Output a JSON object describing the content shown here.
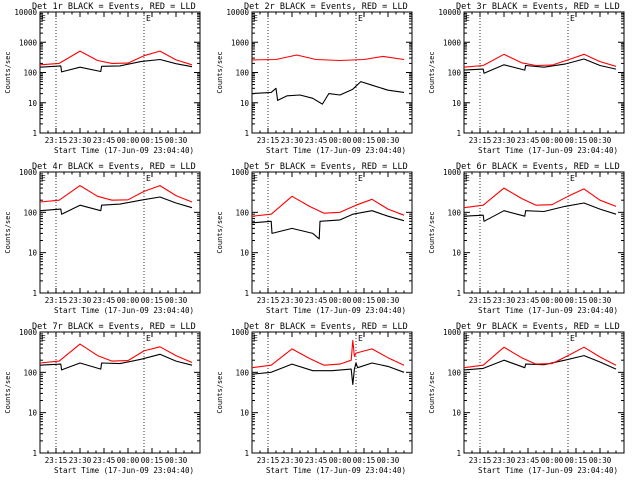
{
  "colors": {
    "events": "#000000",
    "lld": "#ff0000",
    "axes": "#000000",
    "background": "#ffffff"
  },
  "xlabel": "Start Time (17-Jun-09 23:04:40)",
  "ylabel": "Counts/sec",
  "corner_mark": "E",
  "xticks": [
    "23:15",
    "23:30",
    "23:45",
    "00:00",
    "00:15",
    "00:30"
  ],
  "yticks": [
    "1",
    "10",
    "100",
    "1000",
    "10000"
  ],
  "chart_data": [
    {
      "type": "line",
      "title": "Det 1r BLACK = Events, RED = LLD",
      "x_unit": "minutes after 23:04:40",
      "ylim": [
        1,
        10000
      ],
      "y_scale": "log",
      "grid": false,
      "series": [
        {
          "name": "Events",
          "x": [
            0,
            13,
            13.5,
            25,
            38,
            38.5,
            50,
            63,
            75,
            85,
            95
          ],
          "y": [
            150,
            165,
            105,
            150,
            108,
            160,
            165,
            230,
            270,
            195,
            155
          ]
        },
        {
          "name": "LLD",
          "x": [
            0,
            12,
            25,
            36,
            45,
            55,
            65,
            75,
            85,
            95
          ],
          "y": [
            180,
            200,
            510,
            250,
            200,
            205,
            360,
            510,
            260,
            180
          ]
        }
      ]
    },
    {
      "type": "line",
      "title": "Det 2r BLACK = Events, RED = LLD",
      "x_unit": "minutes after 23:04:40",
      "ylim": [
        1,
        10000
      ],
      "y_scale": "log",
      "grid": false,
      "series": [
        {
          "name": "Events",
          "x": [
            0,
            12,
            15,
            16,
            22,
            30,
            38,
            44,
            48,
            55,
            63,
            68,
            75,
            85,
            95
          ],
          "y": [
            20,
            22,
            30,
            12,
            17,
            18,
            14,
            9,
            20,
            18,
            28,
            50,
            38,
            26,
            22
          ]
        },
        {
          "name": "LLD",
          "x": [
            0,
            15,
            28,
            40,
            55,
            70,
            82,
            95
          ],
          "y": [
            260,
            270,
            380,
            270,
            250,
            270,
            340,
            270
          ]
        }
      ]
    },
    {
      "type": "line",
      "title": "Det 3r BLACK = Events, RED = LLD",
      "x_unit": "minutes after 23:04:40",
      "ylim": [
        1,
        10000
      ],
      "y_scale": "log",
      "grid": false,
      "series": [
        {
          "name": "Events",
          "x": [
            0,
            12,
            12.5,
            25,
            38,
            38.5,
            50,
            63,
            75,
            85,
            95
          ],
          "y": [
            120,
            130,
            95,
            180,
            120,
            170,
            150,
            190,
            280,
            170,
            130
          ]
        },
        {
          "name": "LLD",
          "x": [
            0,
            12,
            25,
            36,
            45,
            55,
            65,
            75,
            85,
            95
          ],
          "y": [
            150,
            170,
            400,
            210,
            170,
            175,
            260,
            400,
            230,
            160
          ]
        }
      ]
    },
    {
      "type": "line",
      "title": "Det 4r BLACK = Events, RED = LLD",
      "x_unit": "minutes after 23:04:40",
      "ylim": [
        1,
        1000
      ],
      "y_scale": "log",
      "grid": false,
      "series": [
        {
          "name": "Events",
          "x": [
            0,
            13,
            13.5,
            25,
            38,
            38.5,
            50,
            63,
            75,
            85,
            95
          ],
          "y": [
            110,
            120,
            90,
            150,
            110,
            150,
            160,
            200,
            240,
            170,
            130
          ]
        },
        {
          "name": "LLD",
          "x": [
            0,
            12,
            25,
            36,
            45,
            55,
            65,
            75,
            85,
            95
          ],
          "y": [
            180,
            200,
            460,
            250,
            200,
            205,
            330,
            460,
            260,
            180
          ]
        }
      ]
    },
    {
      "type": "line",
      "title": "Det 5r BLACK = Events, RED = LLD",
      "x_unit": "minutes after 23:04:40",
      "ylim": [
        1,
        1000
      ],
      "y_scale": "log",
      "grid": false,
      "series": [
        {
          "name": "Events",
          "x": [
            0,
            12,
            12.5,
            25,
            38,
            42,
            42.5,
            55,
            63,
            75,
            85,
            95
          ],
          "y": [
            55,
            60,
            30,
            40,
            30,
            22,
            60,
            65,
            90,
            110,
            80,
            62
          ]
        },
        {
          "name": "LLD",
          "x": [
            0,
            12,
            25,
            36,
            45,
            55,
            65,
            75,
            85,
            95
          ],
          "y": [
            80,
            90,
            250,
            140,
            95,
            100,
            150,
            210,
            120,
            85
          ]
        }
      ]
    },
    {
      "type": "line",
      "title": "Det 6r BLACK = Events, RED = LLD",
      "x_unit": "minutes after 23:04:40",
      "ylim": [
        1,
        1000
      ],
      "y_scale": "log",
      "grid": false,
      "series": [
        {
          "name": "Events",
          "x": [
            0,
            12,
            12.5,
            25,
            38,
            38.5,
            50,
            63,
            75,
            85,
            95
          ],
          "y": [
            80,
            85,
            60,
            110,
            80,
            110,
            105,
            140,
            170,
            120,
            90
          ]
        },
        {
          "name": "LLD",
          "x": [
            0,
            12,
            25,
            36,
            45,
            55,
            65,
            75,
            85,
            95
          ],
          "y": [
            130,
            150,
            400,
            220,
            150,
            155,
            250,
            380,
            200,
            140
          ]
        }
      ]
    },
    {
      "type": "line",
      "title": "Det 7r BLACK = Events, RED = LLD",
      "x_unit": "minutes after 23:04:40",
      "ylim": [
        1,
        1000
      ],
      "y_scale": "log",
      "grid": false,
      "series": [
        {
          "name": "Events",
          "x": [
            0,
            13,
            13.5,
            25,
            38,
            38.5,
            50,
            63,
            75,
            85,
            95
          ],
          "y": [
            150,
            160,
            115,
            170,
            120,
            170,
            165,
            210,
            280,
            190,
            150
          ]
        },
        {
          "name": "LLD",
          "x": [
            0,
            12,
            25,
            36,
            45,
            55,
            65,
            75,
            85,
            95
          ],
          "y": [
            170,
            190,
            500,
            260,
            190,
            195,
            340,
            430,
            260,
            175
          ]
        }
      ]
    },
    {
      "type": "line",
      "title": "Det 8r BLACK = Events, RED = LLD",
      "x_unit": "minutes after 23:04:40",
      "ylim": [
        1,
        1000
      ],
      "y_scale": "log",
      "grid": false,
      "series": [
        {
          "name": "Events",
          "x": [
            0,
            12,
            25,
            38,
            50,
            62,
            63,
            64,
            65,
            66,
            75,
            85,
            95
          ],
          "y": [
            90,
            100,
            160,
            110,
            110,
            120,
            50,
            120,
            170,
            130,
            170,
            140,
            100
          ]
        },
        {
          "name": "LLD",
          "x": [
            0,
            12,
            25,
            36,
            45,
            55,
            62,
            63,
            64,
            65,
            75,
            85,
            95
          ],
          "y": [
            130,
            150,
            380,
            220,
            150,
            160,
            200,
            620,
            250,
            300,
            380,
            230,
            150
          ]
        }
      ]
    },
    {
      "type": "line",
      "title": "Det 9r BLACK = Events, RED = LLD",
      "x_unit": "minutes after 23:04:40",
      "ylim": [
        1,
        1000
      ],
      "y_scale": "log",
      "grid": false,
      "series": [
        {
          "name": "Events",
          "x": [
            0,
            12,
            25,
            38,
            38.5,
            50,
            63,
            75,
            85,
            95
          ],
          "y": [
            115,
            125,
            200,
            130,
            160,
            155,
            200,
            260,
            180,
            120
          ]
        },
        {
          "name": "LLD",
          "x": [
            0,
            12,
            25,
            36,
            45,
            55,
            65,
            75,
            85,
            95
          ],
          "y": [
            130,
            150,
            420,
            230,
            160,
            165,
            260,
            420,
            240,
            150
          ]
        }
      ]
    }
  ]
}
